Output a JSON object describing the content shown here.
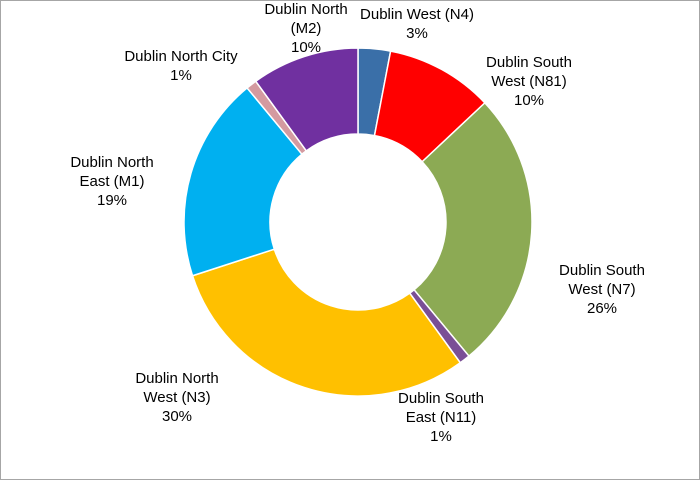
{
  "chart_data": {
    "type": "pie",
    "variant": "donut",
    "start_angle_deg": 0,
    "direction": "clockwise",
    "title": "",
    "slices": [
      {
        "label_lines": [
          "Dublin West (N4)",
          "3%"
        ],
        "value": 3,
        "color": "#3a6fa8"
      },
      {
        "label_lines": [
          "Dublin South",
          "West (N81)",
          "10%"
        ],
        "value": 10,
        "color": "#ff0000"
      },
      {
        "label_lines": [
          "Dublin South",
          "West (N7)",
          "26%"
        ],
        "value": 26,
        "color": "#8caa54"
      },
      {
        "label_lines": [
          "Dublin South",
          "East (N11)",
          "1%"
        ],
        "value": 1,
        "color": "#7a4f96"
      },
      {
        "label_lines": [
          "Dublin North",
          "West (N3)",
          "30%"
        ],
        "value": 30,
        "color": "#ffc000"
      },
      {
        "label_lines": [
          "Dublin North",
          "East (M1)",
          "19%"
        ],
        "value": 19,
        "color": "#00b0f0"
      },
      {
        "label_lines": [
          "Dublin North City",
          "1%"
        ],
        "value": 1,
        "color": "#d49aa0"
      },
      {
        "label_lines": [
          "Dublin North",
          "(M2)",
          "10%"
        ],
        "value": 10,
        "color": "#7030a0"
      }
    ]
  }
}
